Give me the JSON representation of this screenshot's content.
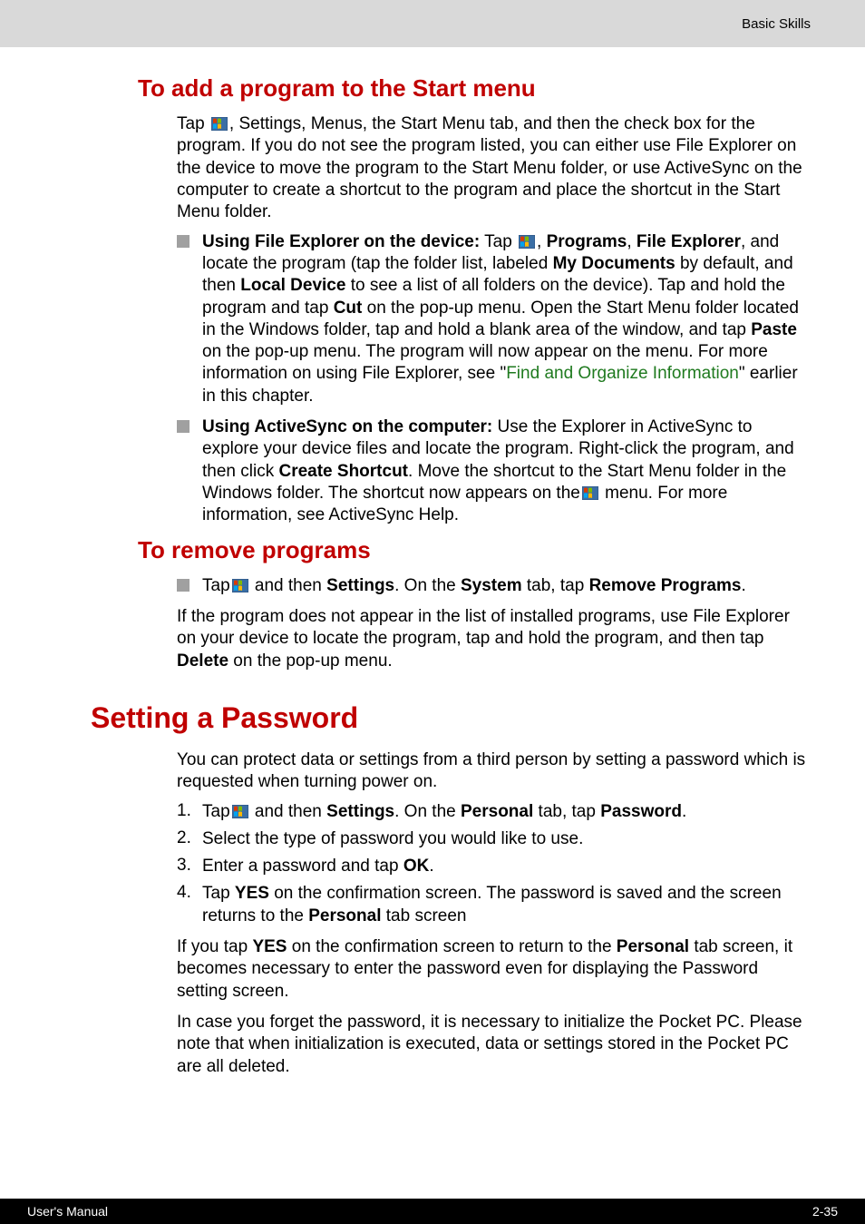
{
  "header": {
    "chapter": "Basic Skills"
  },
  "footer": {
    "manual": "User's Manual",
    "page": "2-35"
  },
  "icons": {
    "windows_flag_svg": "<svg viewBox='0 0 18 15' width='18' height='15'><rect x='0' y='0' width='18' height='15' fill='#3a6ea5' stroke='#2a4f7a'/><path d='M2 2 Q4 1 6 2 L6 7 Q4 6 2 7 Z' fill='#d83b01'/><path d='M7 2 Q9 1 11 2 L11 7 Q9 6 7 7 Z' fill='#7fba00'/><path d='M2 8 Q4 7 6 8 L6 13 Q4 12 2 13 Z' fill='#00a4ef'/><path d='M7 8 Q9 7 11 8 L11 13 Q9 12 7 13 Z' fill='#ffb900'/></svg>"
  },
  "sections": {
    "add_program": {
      "title": "To add a program to the Start menu",
      "intro_pre": "Tap ",
      "intro_post": ", Settings, Menus, the Start Menu tab, and then the check box for the program. If you do not see the program listed, you can either use File Explorer on the device to move the program to the Start Menu folder, or use ActiveSync on the computer to create a shortcut to the program and place the shortcut in the Start Menu folder.",
      "b1_lead": "Using File Explorer on the device:",
      "b1_mid1": " Tap ",
      "b1_mid2": ", ",
      "b1_bold2": "Programs",
      "b1_mid3": ", ",
      "b1_bold3": "File Explorer",
      "b1_mid4": ", and locate the program (tap the folder list, labeled ",
      "b1_bold4": "My Documents",
      "b1_mid5": " by default, and then ",
      "b1_bold5": "Local Device",
      "b1_mid6": " to see a list of all folders on the device). Tap and hold the program and tap ",
      "b1_bold6": "Cut",
      "b1_mid7": " on the pop-up menu. Open the Start Menu folder located in the Windows folder, tap and hold a blank area of the window, and tap ",
      "b1_bold7": "Paste",
      "b1_mid8": " on the pop-up menu. The program will now appear on the menu. For more information on using File Explorer, see \"",
      "b1_link": "Find and Organize Information",
      "b1_end": "\" earlier in this chapter.",
      "b2_lead": "Using ActiveSync on the computer:",
      "b2_mid1": " Use the Explorer in ActiveSync to explore your device files and locate the program. Right-click the program, and then click ",
      "b2_bold1": "Create Shortcut",
      "b2_mid2": ". Move the shortcut to the Start Menu folder in the Windows folder. The shortcut now appears on the",
      "b2_end": " menu. For more information, see ActiveSync Help."
    },
    "remove_programs": {
      "title": "To remove programs",
      "b1_pre": "Tap",
      "b1_mid1": " and then ",
      "b1_bold1": "Settings",
      "b1_mid2": ". On the ",
      "b1_bold2": "System",
      "b1_mid3": " tab, tap ",
      "b1_bold3": "Remove Programs",
      "b1_end": ".",
      "para_pre": "If the program does not appear in the list of installed programs, use File Explorer on your device to locate the program, tap and hold the program, and then tap ",
      "para_bold": "Delete",
      "para_end": " on the pop-up menu."
    },
    "password": {
      "title": "Setting a Password",
      "intro": "You can protect data or settings from a third person by setting a password which is requested when turning power on.",
      "n1_pre": "Tap",
      "n1_mid1": " and then ",
      "n1_bold1": "Settings",
      "n1_mid2": ". On the ",
      "n1_bold2": "Personal",
      "n1_mid3": " tab, tap ",
      "n1_bold3": "Password",
      "n1_end": ".",
      "n2": "Select the type of password you would like to use.",
      "n3_pre": "Enter a password and tap ",
      "n3_bold": "OK",
      "n3_end": ".",
      "n4_pre": "Tap ",
      "n4_bold1": "YES",
      "n4_mid": " on the confirmation screen. The password is saved and the screen returns to the ",
      "n4_bold2": "Personal",
      "n4_end": " tab screen",
      "p2_pre": "If you tap ",
      "p2_bold1": "YES",
      "p2_mid1": " on the confirmation screen to return to the ",
      "p2_bold2": "Personal",
      "p2_end": " tab screen, it becomes necessary to enter the password even for displaying the Password setting screen.",
      "p3": "In case you forget the password, it is necessary to initialize the Pocket PC. Please note that when initialization is executed, data or settings stored in the Pocket PC are all deleted."
    }
  }
}
